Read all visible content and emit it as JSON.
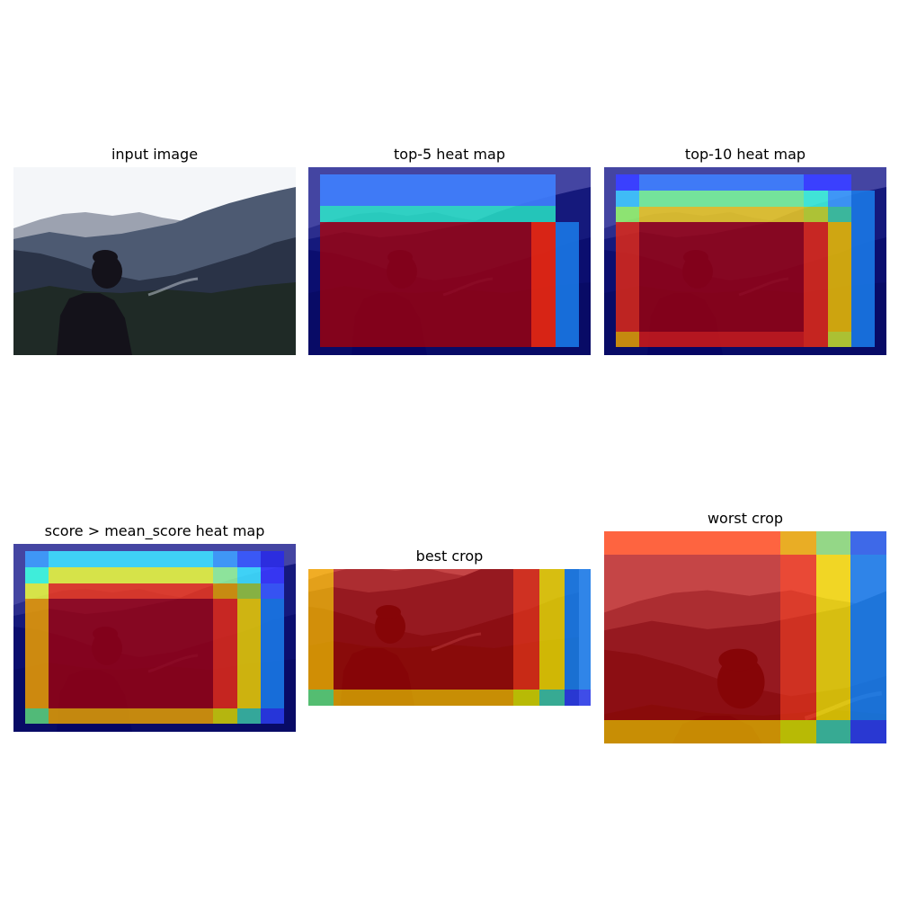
{
  "panels": [
    {
      "id": "input",
      "title": "input image"
    },
    {
      "id": "top5",
      "title": "top-5 heat map"
    },
    {
      "id": "top10",
      "title": "top-10 heat map"
    },
    {
      "id": "mean",
      "title": "score > mean_score heat map"
    },
    {
      "id": "best",
      "title": "best crop"
    },
    {
      "id": "worst",
      "title": "worst crop"
    }
  ],
  "colors": {
    "sky": "#f4f6f9",
    "far_mountain": "#8c93a3",
    "mid_mountain": "#4d5a72",
    "near_mountain": "#2a3347",
    "forest": "#1f2a26",
    "person": "#14121a",
    "heat_dark_blue": "#00007f",
    "heat_blue": "#0050ff",
    "heat_cyan": "#29ffce",
    "heat_green": "#7dff7a",
    "heat_yellow": "#ffe600",
    "heat_orange": "#ff9900",
    "heat_red": "#b30000"
  }
}
